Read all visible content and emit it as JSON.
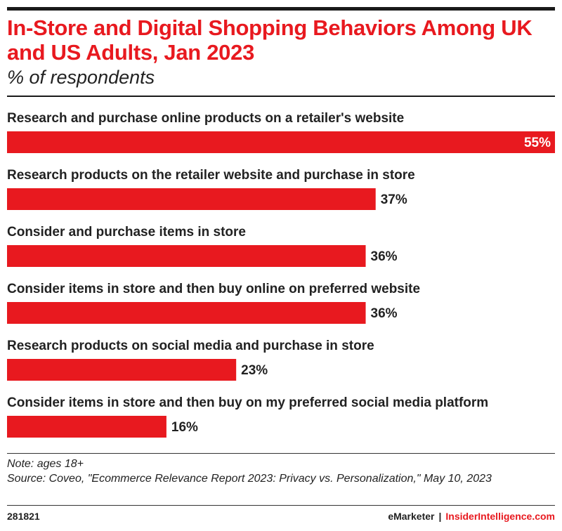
{
  "header": {
    "title": "In-Store and Digital Shopping Behaviors Among UK and US Adults, Jan 2023",
    "subtitle": "% of respondents"
  },
  "chart_data": {
    "type": "bar",
    "orientation": "horizontal",
    "title": "In-Store and Digital Shopping Behaviors Among UK and US Adults, Jan 2023",
    "subtitle": "% of respondents",
    "categories": [
      "Research and purchase online products on a retailer's website",
      "Research products on the retailer website and purchase in store",
      "Consider and purchase items in store",
      "Consider items in store and then buy online on preferred website",
      "Research products on social media and purchase in store",
      "Consider items in store and then buy on my preferred social media platform"
    ],
    "values": [
      55,
      37,
      36,
      36,
      23,
      16
    ],
    "value_labels": [
      "55%",
      "37%",
      "36%",
      "36%",
      "23%",
      "16%"
    ],
    "unit": "%",
    "xlim": [
      0,
      55
    ],
    "grid": false,
    "colors": {
      "bar": "#e8191f",
      "label_inside": "#ffffff",
      "label_outside": "#222222"
    }
  },
  "footer": {
    "note": "Note: ages 18+",
    "source": "Source: Coveo, \"Ecommerce Relevance Report 2023: Privacy vs. Personalization,\" May 10, 2023",
    "chart_id": "281821",
    "brand_left": "eMarketer",
    "brand_sep": "|",
    "brand_right": "InsiderIntelligence.com"
  }
}
